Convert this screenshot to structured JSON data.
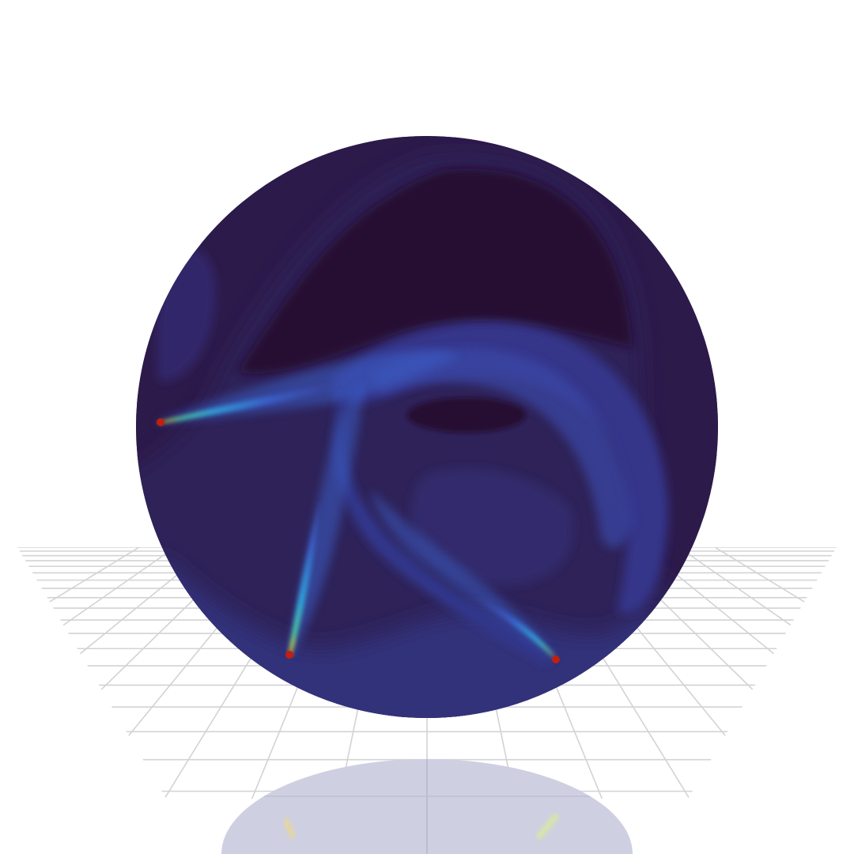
{
  "scene": {
    "background_color": "#ffffff",
    "floor_grid_color": "#d3d3d6",
    "reflection_tint": "#cfcfe2",
    "disc": {
      "base_color": "#2c1a4a",
      "dark_region_color": "#260f33",
      "mid_region_color": "#33307a",
      "edge_color": "#2b2155"
    },
    "jet_colormap": [
      "#2a2f8a",
      "#3a5fc8",
      "#2fa0d8",
      "#4fd0a0",
      "#c8e040",
      "#f08020",
      "#c02010"
    ],
    "jets": [
      {
        "name": "left-jet",
        "source": "left"
      },
      {
        "name": "bottom-jet",
        "source": "bottom-left"
      },
      {
        "name": "right-jet",
        "source": "bottom-right"
      }
    ]
  }
}
